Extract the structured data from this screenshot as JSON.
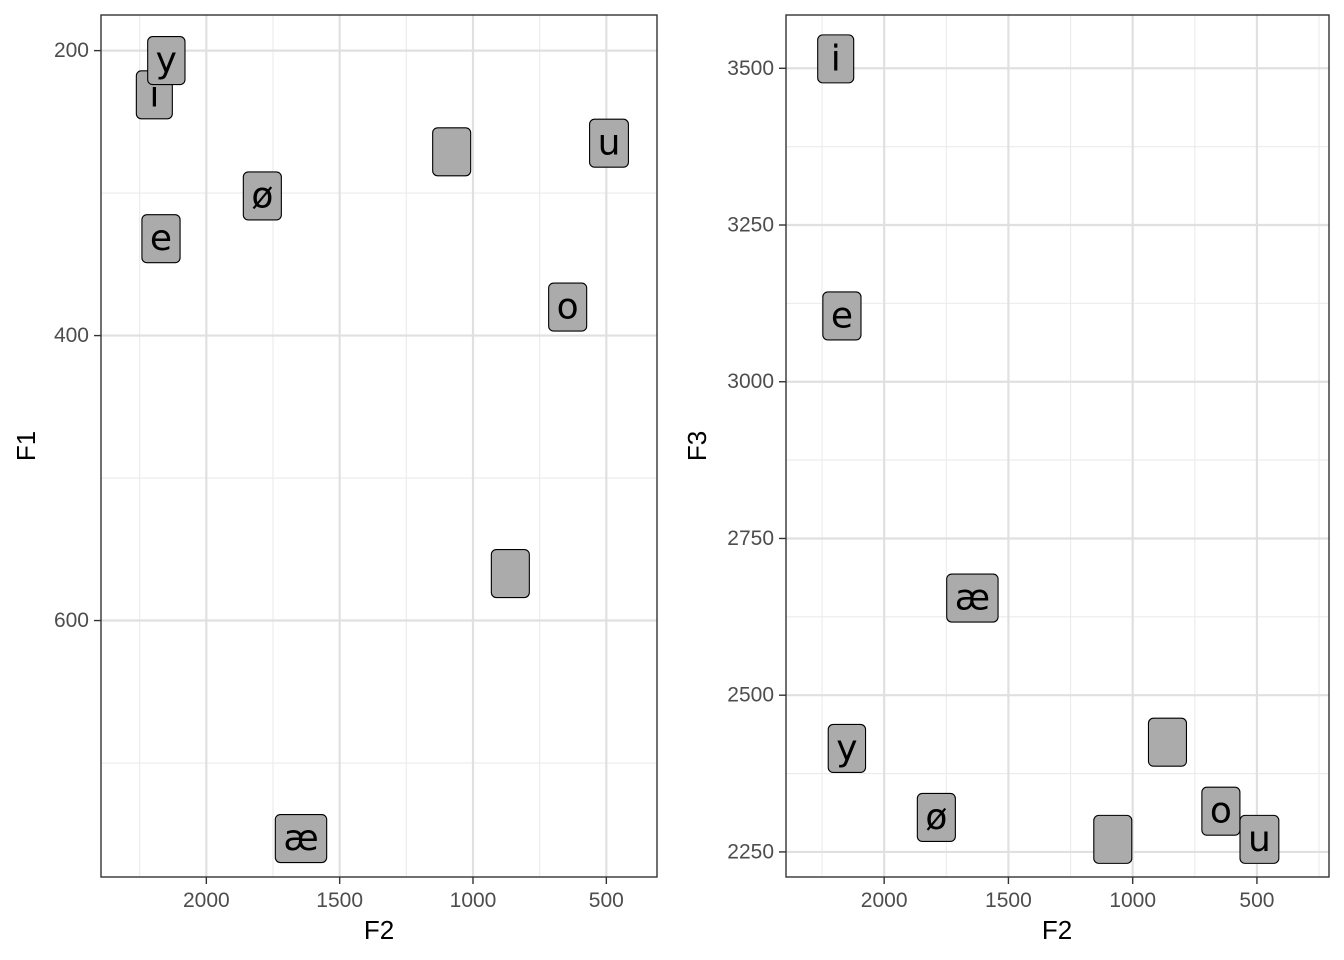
{
  "chart_data": [
    {
      "type": "scatter",
      "title": "",
      "xlabel": "F2",
      "ylabel": "F1",
      "x_reversed": true,
      "y_reversed": true,
      "xlim": [
        2395,
        310
      ],
      "ylim": [
        175,
        780
      ],
      "x_ticks": [
        2000,
        1500,
        1000,
        500
      ],
      "x_tick_labels": [
        "2000",
        "1500",
        "1000",
        "500"
      ],
      "y_ticks": [
        200,
        400,
        600
      ],
      "y_tick_labels": [
        "200",
        "400",
        "600"
      ],
      "grid": true,
      "label_fill": "#ababab",
      "points": [
        {
          "label": "i",
          "x": 2195,
          "y": 231
        },
        {
          "label": "y",
          "x": 2150,
          "y": 207
        },
        {
          "label": "e",
          "x": 2170,
          "y": 332
        },
        {
          "label": "ø",
          "x": 1790,
          "y": 302
        },
        {
          "label": "æ",
          "x": 1645,
          "y": 753
        },
        {
          "label": "",
          "x": 1080,
          "y": 271
        },
        {
          "label": "",
          "x": 860,
          "y": 567
        },
        {
          "label": "u",
          "x": 490,
          "y": 265
        },
        {
          "label": "o",
          "x": 645,
          "y": 380
        }
      ]
    },
    {
      "type": "scatter",
      "title": "",
      "xlabel": "F2",
      "ylabel": "F3",
      "x_reversed": true,
      "y_reversed": false,
      "xlim": [
        2395,
        210
      ],
      "ylim": [
        2210,
        3585
      ],
      "x_ticks": [
        2000,
        1500,
        1000,
        500
      ],
      "x_tick_labels": [
        "2000",
        "1500",
        "1000",
        "500"
      ],
      "y_ticks": [
        2250,
        2500,
        2750,
        3000,
        3250,
        3500
      ],
      "y_tick_labels": [
        "2250",
        "2500",
        "2750",
        "3000",
        "3250",
        "3500"
      ],
      "grid": true,
      "label_fill": "#ababab",
      "points": [
        {
          "label": "i",
          "x": 2195,
          "y": 3515
        },
        {
          "label": "e",
          "x": 2170,
          "y": 3105
        },
        {
          "label": "æ",
          "x": 1645,
          "y": 2655
        },
        {
          "label": "y",
          "x": 2150,
          "y": 2415
        },
        {
          "label": "ø",
          "x": 1790,
          "y": 2305
        },
        {
          "label": "",
          "x": 1080,
          "y": 2270
        },
        {
          "label": "",
          "x": 860,
          "y": 2425
        },
        {
          "label": "o",
          "x": 645,
          "y": 2315
        },
        {
          "label": "u",
          "x": 490,
          "y": 2270
        }
      ]
    }
  ]
}
